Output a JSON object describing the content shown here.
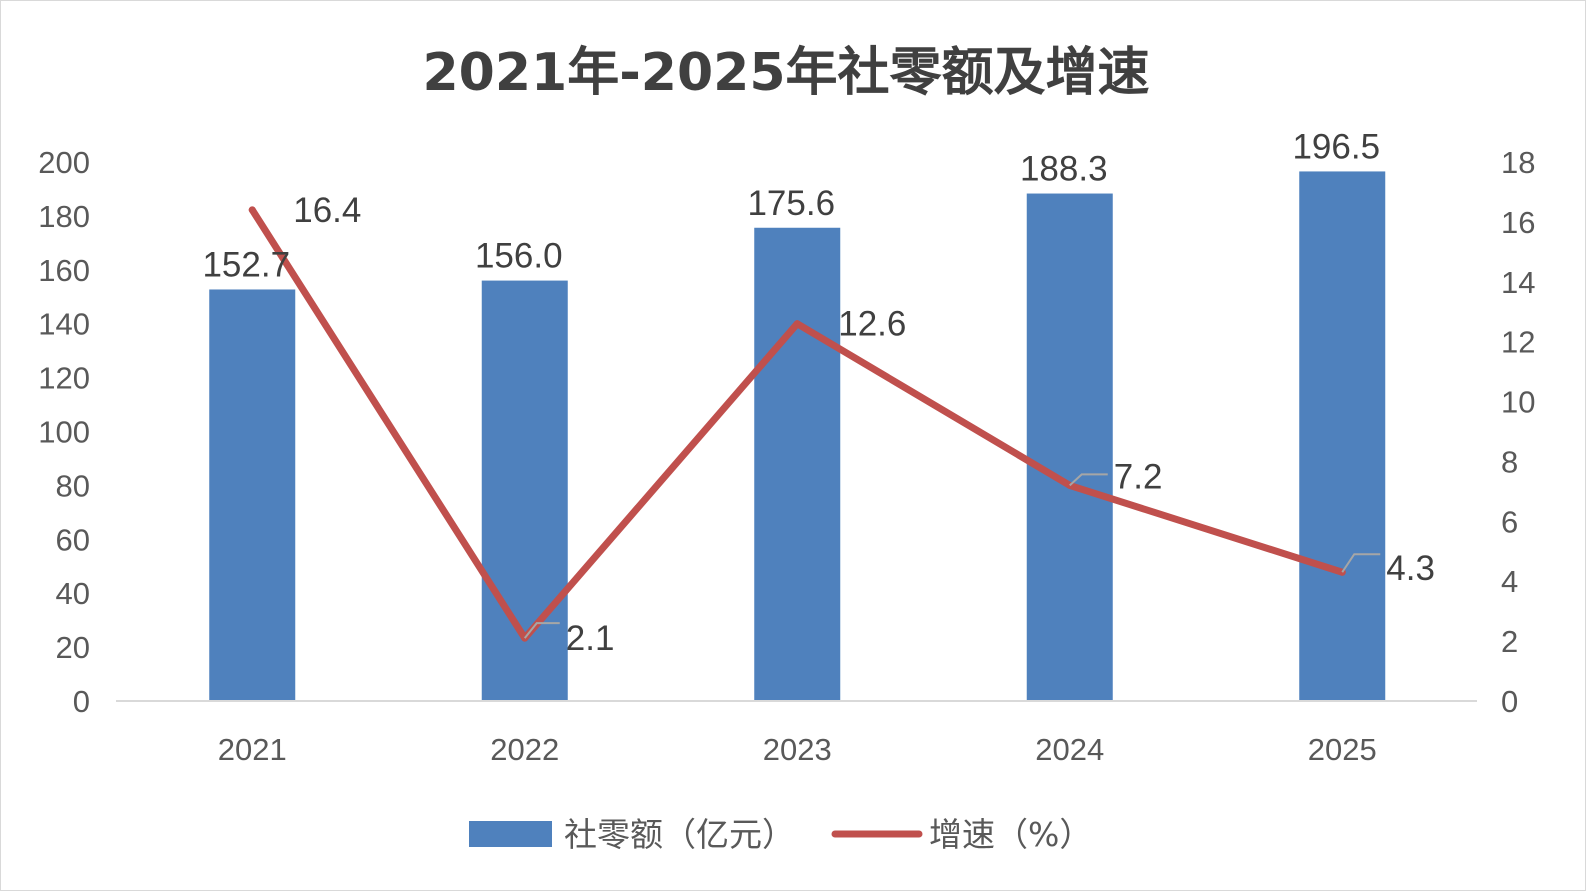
{
  "chart_data": {
    "type": "bar",
    "title": "2021年-2025年社零额及增速",
    "categories": [
      "2021",
      "2022",
      "2023",
      "2024",
      "2025"
    ],
    "series": [
      {
        "name": "社零额（亿元）",
        "type": "bar",
        "axis": "left",
        "color": "#4f81bd",
        "values": [
          152.7,
          156.0,
          175.6,
          188.3,
          196.5
        ],
        "labels": [
          "152.7",
          "156.0",
          "175.6",
          "188.3",
          "196.5"
        ]
      },
      {
        "name": "增速（%）",
        "type": "line",
        "axis": "right",
        "color": "#c0504d",
        "values": [
          16.4,
          2.1,
          12.6,
          7.2,
          4.3
        ],
        "labels": [
          "16.4",
          "2.1",
          "12.6",
          "7.2",
          "4.3"
        ]
      }
    ],
    "y_left": {
      "min": 0,
      "max": 200,
      "step": 20,
      "ticks": [
        "0",
        "20",
        "40",
        "60",
        "80",
        "100",
        "120",
        "140",
        "160",
        "180",
        "200"
      ]
    },
    "y_right": {
      "min": 0,
      "max": 18,
      "step": 2,
      "ticks": [
        "0",
        "2",
        "4",
        "6",
        "8",
        "10",
        "12",
        "14",
        "16",
        "18"
      ]
    },
    "grid": false,
    "legend_position": "bottom"
  }
}
